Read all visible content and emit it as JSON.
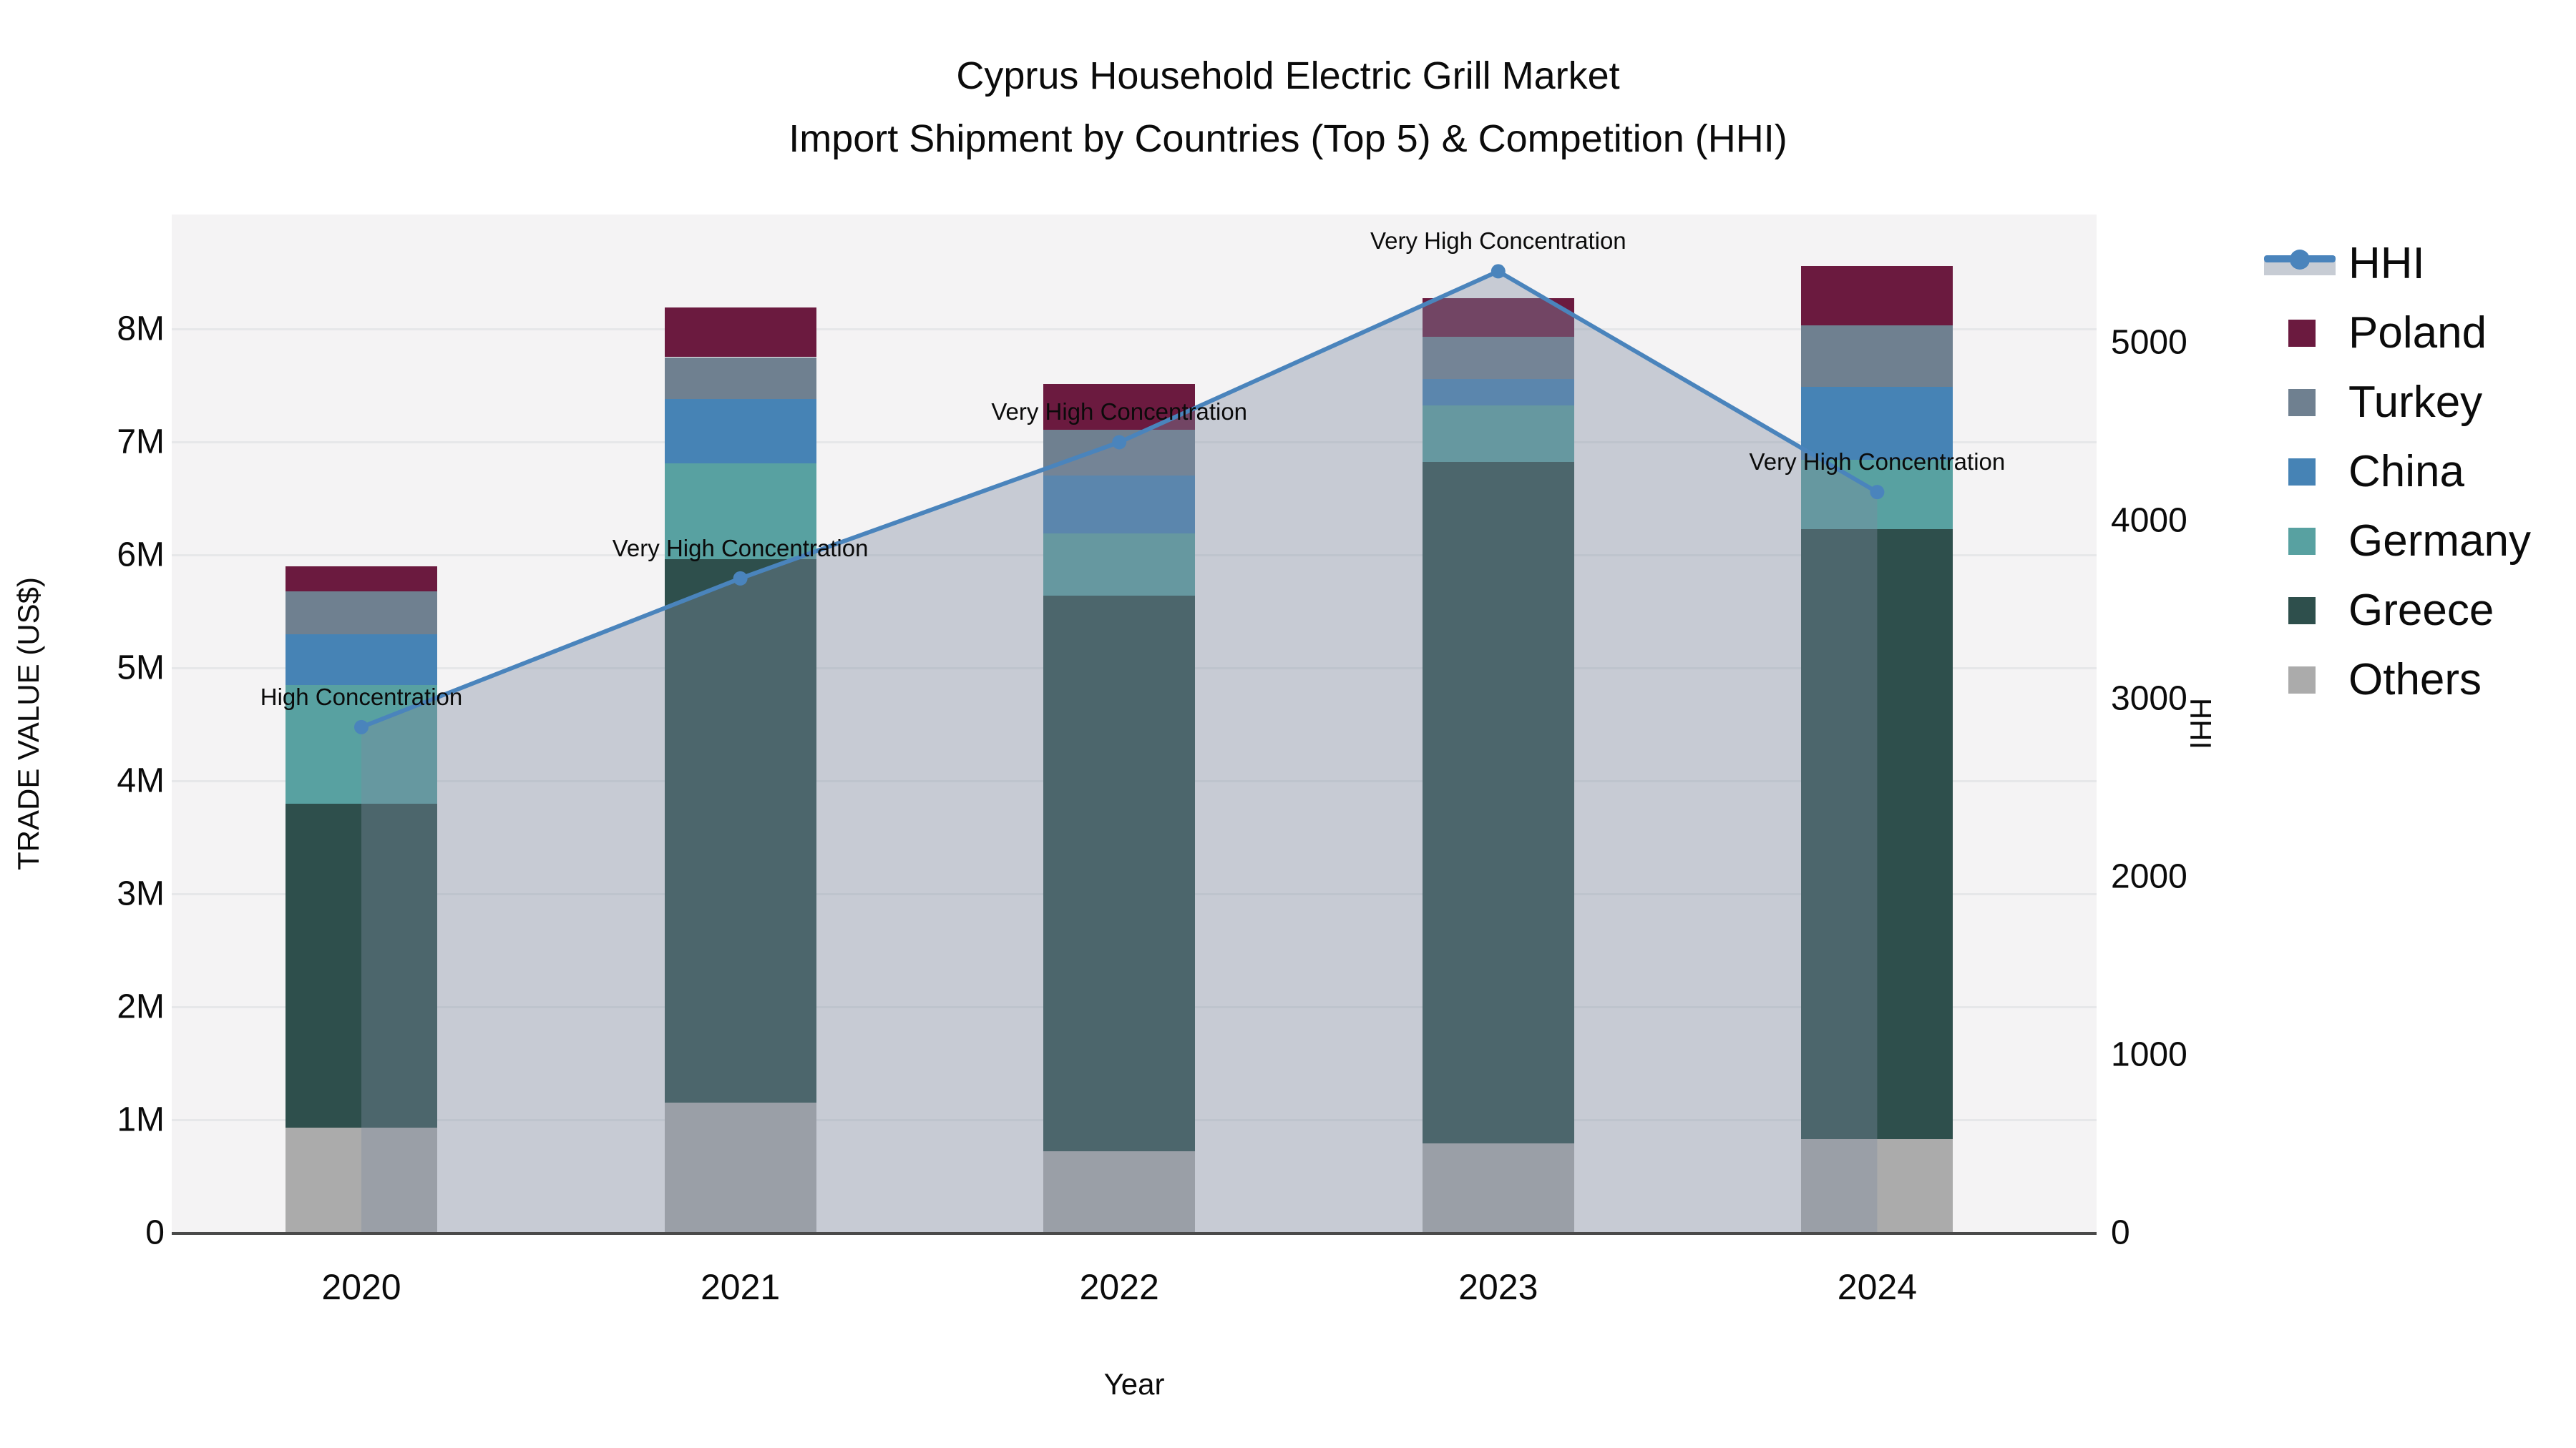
{
  "title": {
    "line1": "Cyprus Household Electric Grill Market",
    "line2": "Import Shipment by Countries (Top 5) & Competition (HHI)"
  },
  "colors": {
    "plot_background": "#F4F3F4",
    "gridline": "#E6E7E9",
    "axis_line": "#4A4A4A",
    "hhi_line": "#4A84BC",
    "hhi_area_fill": "rgba(125,140,160,0.38)",
    "poland": "#6B1A3F",
    "turkey": "#6F8090",
    "china": "#4683B5",
    "germany": "#58A1A1",
    "greece": "#2E4F4C",
    "others": "#ABABAB"
  },
  "legend": {
    "entries": [
      {
        "label": "HHI",
        "type": "line",
        "color": "#4A84BC"
      },
      {
        "label": "Poland",
        "type": "swatch",
        "color": "#6B1A3F"
      },
      {
        "label": "Turkey",
        "type": "swatch",
        "color": "#6F8090"
      },
      {
        "label": "China",
        "type": "swatch",
        "color": "#4683B5"
      },
      {
        "label": "Germany",
        "type": "swatch",
        "color": "#58A1A1"
      },
      {
        "label": "Greece",
        "type": "swatch",
        "color": "#2E4F4C"
      },
      {
        "label": "Others",
        "type": "swatch",
        "color": "#ABABAB"
      }
    ]
  },
  "chart_data": {
    "type": "bar",
    "subtype": "stacked-bar-with-line-overlay",
    "categories": [
      "2020",
      "2021",
      "2022",
      "2023",
      "2024"
    ],
    "bar_value_unit": "US$ millions",
    "stack_order_bottom_to_top": [
      "Others",
      "Greece",
      "Germany",
      "China",
      "Turkey",
      "Poland"
    ],
    "series": [
      {
        "name": "Poland",
        "color": "#6B1A3F",
        "values": [
          0.22,
          0.44,
          0.4,
          0.34,
          0.53
        ]
      },
      {
        "name": "Turkey",
        "color": "#6F8090",
        "values": [
          0.38,
          0.37,
          0.41,
          0.37,
          0.54
        ]
      },
      {
        "name": "China",
        "color": "#4683B5",
        "values": [
          0.45,
          0.57,
          0.51,
          0.24,
          0.65
        ]
      },
      {
        "name": "Germany",
        "color": "#58A1A1",
        "values": [
          1.05,
          0.85,
          0.55,
          0.5,
          0.61
        ]
      },
      {
        "name": "Greece",
        "color": "#2E4F4C",
        "values": [
          2.87,
          4.81,
          4.92,
          6.03,
          5.4
        ]
      },
      {
        "name": "Others",
        "color": "#ABABAB",
        "values": [
          0.93,
          1.15,
          0.72,
          0.79,
          0.83
        ]
      }
    ],
    "bar_totals": [
      5.9,
      8.19,
      7.51,
      8.27,
      8.56
    ],
    "hhi": {
      "name": "HHI",
      "type": "line",
      "line_color": "#4A84BC",
      "area_fill": "rgba(125,140,160,0.38)",
      "values": [
        2840,
        3675,
        4440,
        5400,
        4160
      ]
    },
    "annotations": [
      {
        "category": "2020",
        "text": "High Concentration"
      },
      {
        "category": "2021",
        "text": "Very High Concentration"
      },
      {
        "category": "2022",
        "text": "Very High Concentration"
      },
      {
        "category": "2023",
        "text": "Very High Concentration"
      },
      {
        "category": "2024",
        "text": "Very High Concentration"
      }
    ],
    "left_axis": {
      "title": "TRADE VALUE (US$)",
      "ticks": [
        "0",
        "1M",
        "2M",
        "3M",
        "4M",
        "5M",
        "6M",
        "7M",
        "8M"
      ],
      "tick_values": [
        0,
        1,
        2,
        3,
        4,
        5,
        6,
        7,
        8
      ],
      "range": [
        0,
        9.0
      ]
    },
    "right_axis": {
      "title": "HHI",
      "ticks": [
        "0",
        "1000",
        "2000",
        "3000",
        "4000",
        "5000"
      ],
      "tick_values": [
        0,
        1000,
        2000,
        3000,
        4000,
        5000
      ],
      "range": [
        0,
        5720
      ]
    },
    "x_axis": {
      "title": "Year"
    },
    "grid": true,
    "legend_position": "right"
  }
}
